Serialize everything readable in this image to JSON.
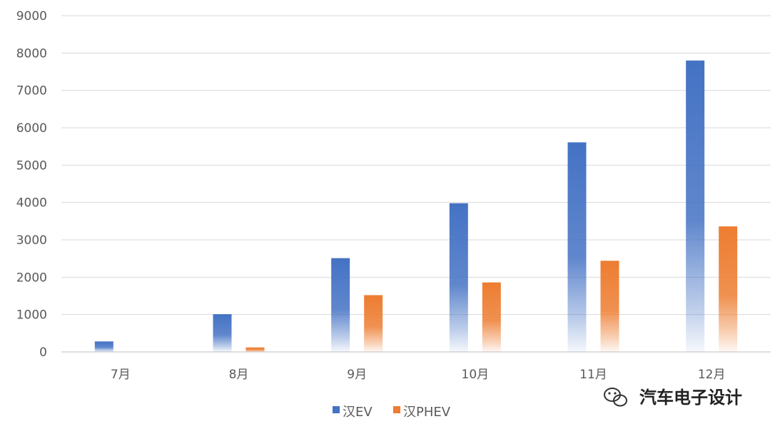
{
  "chart_data": {
    "type": "bar",
    "categories": [
      "7月",
      "8月",
      "9月",
      "10月",
      "11月",
      "12月"
    ],
    "series": [
      {
        "name": "汉EV",
        "color": "#4472C4",
        "values": [
          280,
          1010,
          2510,
          3980,
          5610,
          7800
        ]
      },
      {
        "name": "汉PHEV",
        "color": "#ED7D31",
        "values": [
          0,
          120,
          1520,
          1860,
          2440,
          3360
        ]
      }
    ],
    "ylim": [
      0,
      9000
    ],
    "yticks": [
      "0",
      "1000",
      "2000",
      "3000",
      "4000",
      "5000",
      "6000",
      "7000",
      "8000",
      "9000"
    ],
    "grid": true,
    "legend_position": "bottom",
    "title": "",
    "xlabel": "",
    "ylabel": ""
  },
  "watermark": {
    "text": "汽车电子设计",
    "icon": "wechat-icon"
  }
}
